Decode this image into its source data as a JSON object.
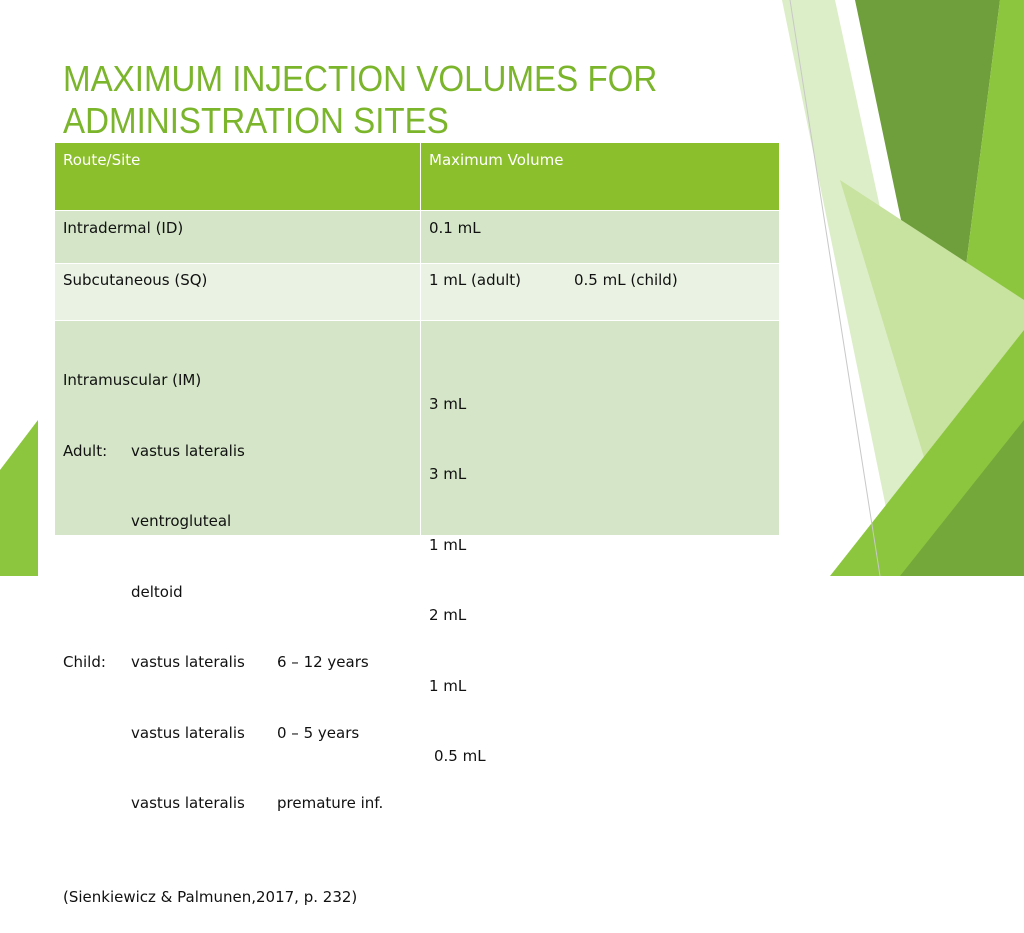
{
  "title": "MAXIMUM INJECTION VOLUMES FOR ADMINISTRATION SITES",
  "table": {
    "header": [
      "Route/Site",
      "Maximum Volume"
    ],
    "rows": [
      {
        "site": [
          "Intradermal (ID)"
        ],
        "volume": [
          "0.1 mL"
        ]
      },
      {
        "site": [
          "Subcutaneous (SQ)"
        ],
        "volume": [
          "1 mL (adult)",
          "0.5 mL (child)"
        ]
      },
      {
        "site": [
          "Intramuscular (IM)",
          "Adult:",
          "vastus lateralis",
          "ventrogluteal",
          "deltoid",
          "Child:",
          "vastus lateralis",
          "6 – 12 years",
          "vastus lateralis",
          "0 – 5 years",
          "vastus lateralis",
          "premature inf."
        ],
        "volume": [
          "3 mL",
          "3 mL",
          "1 mL",
          "2 mL",
          "1 mL",
          "0.5 mL"
        ]
      }
    ],
    "note": "(Sienkiewicz & Palmunen,2017, p. 232)"
  }
}
